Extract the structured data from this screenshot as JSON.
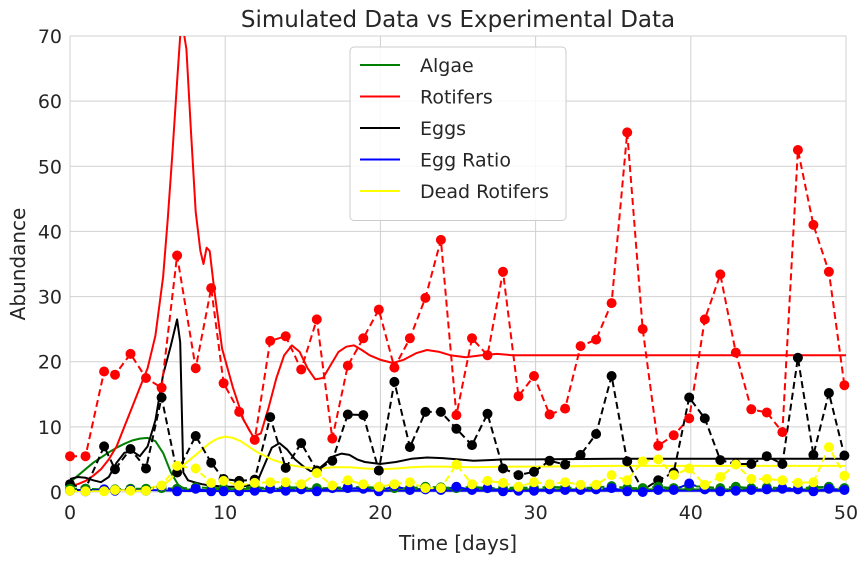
{
  "chart_data": {
    "type": "line",
    "title": "Simulated Data vs Experimental Data",
    "xlabel": "Time [days]",
    "ylabel": "Abundance",
    "xlim": [
      0,
      50
    ],
    "ylim": [
      0,
      70
    ],
    "xticks": [
      0,
      10,
      20,
      30,
      40,
      50
    ],
    "yticks": [
      0,
      10,
      20,
      30,
      40,
      50,
      60,
      70
    ],
    "grid": true,
    "legend_position": "upper center",
    "simulated_series": [
      {
        "name": "Algae",
        "color": "#008000",
        "points": [
          [
            0,
            1.5
          ],
          [
            0.5,
            2.5
          ],
          [
            1,
            3.5
          ],
          [
            1.5,
            4.5
          ],
          [
            2,
            5.3
          ],
          [
            2.5,
            6.1
          ],
          [
            3,
            6.8
          ],
          [
            3.5,
            7.4
          ],
          [
            4,
            7.9
          ],
          [
            4.5,
            8.2
          ],
          [
            5,
            8.3
          ],
          [
            5.5,
            7.8
          ],
          [
            6,
            6
          ],
          [
            6.5,
            3
          ],
          [
            7,
            1
          ],
          [
            7.5,
            0.4
          ],
          [
            8,
            0.3
          ],
          [
            9,
            0.3
          ],
          [
            10,
            0.4
          ],
          [
            12,
            0.5
          ],
          [
            15,
            0.5
          ],
          [
            20,
            0.5
          ],
          [
            30,
            0.4
          ],
          [
            40,
            0.4
          ],
          [
            50,
            0.4
          ]
        ]
      },
      {
        "name": "Rotifers",
        "color": "#ff0000",
        "points": [
          [
            0,
            1
          ],
          [
            0.5,
            1.2
          ],
          [
            1,
            1.7
          ],
          [
            1.5,
            2.5
          ],
          [
            2,
            3.5
          ],
          [
            2.5,
            5
          ],
          [
            3,
            7
          ],
          [
            3.5,
            10
          ],
          [
            4,
            13
          ],
          [
            4.5,
            16
          ],
          [
            5,
            19
          ],
          [
            5.5,
            24
          ],
          [
            6,
            33
          ],
          [
            6.3,
            42
          ],
          [
            6.6,
            52
          ],
          [
            6.9,
            63
          ],
          [
            7.1,
            70
          ],
          [
            7.3,
            71
          ],
          [
            7.5,
            68
          ],
          [
            7.8,
            55
          ],
          [
            8.1,
            43
          ],
          [
            8.4,
            37
          ],
          [
            8.6,
            35
          ],
          [
            8.8,
            37.5
          ],
          [
            9,
            37
          ],
          [
            9.3,
            31
          ],
          [
            9.8,
            22
          ],
          [
            10.5,
            16
          ],
          [
            11.2,
            11
          ],
          [
            11.8,
            8.5
          ],
          [
            12.3,
            9
          ],
          [
            12.8,
            13
          ],
          [
            13.3,
            17.5
          ],
          [
            13.8,
            21
          ],
          [
            14.3,
            22.5
          ],
          [
            14.8,
            21.5
          ],
          [
            15.3,
            19
          ],
          [
            15.8,
            17.3
          ],
          [
            16.3,
            17.5
          ],
          [
            16.8,
            19.5
          ],
          [
            17.3,
            21.5
          ],
          [
            17.8,
            22.3
          ],
          [
            18.3,
            22.5
          ],
          [
            18.8,
            21.8
          ],
          [
            19.3,
            21
          ],
          [
            20,
            20.3
          ],
          [
            20.8,
            19.8
          ],
          [
            21.5,
            20.3
          ],
          [
            22.3,
            21.3
          ],
          [
            23,
            21.8
          ],
          [
            23.8,
            21.5
          ],
          [
            24.5,
            21
          ],
          [
            25.5,
            20.7
          ],
          [
            26.5,
            21
          ],
          [
            27.5,
            21.2
          ],
          [
            28.5,
            21
          ],
          [
            30,
            21
          ],
          [
            35,
            21
          ],
          [
            40,
            21
          ],
          [
            50,
            21
          ]
        ]
      },
      {
        "name": "Eggs",
        "color": "#000000",
        "points": [
          [
            0,
            2
          ],
          [
            0.5,
            2.3
          ],
          [
            1,
            2.2
          ],
          [
            1.5,
            1.8
          ],
          [
            2,
            1.5
          ],
          [
            2.5,
            2.3
          ],
          [
            3,
            4.5
          ],
          [
            3.5,
            6
          ],
          [
            4,
            6.3
          ],
          [
            4.5,
            5.5
          ],
          [
            5,
            7
          ],
          [
            5.5,
            11
          ],
          [
            6,
            18
          ],
          [
            6.5,
            22.5
          ],
          [
            6.9,
            26.5
          ],
          [
            7.1,
            23
          ],
          [
            7.3,
            3
          ],
          [
            7.6,
            1.8
          ],
          [
            8,
            1.5
          ],
          [
            8.5,
            1.2
          ],
          [
            9,
            1
          ],
          [
            10,
            0.8
          ],
          [
            11,
            0.8
          ],
          [
            12,
            1.2
          ],
          [
            12.5,
            4
          ],
          [
            13,
            6.8
          ],
          [
            13.5,
            7.5
          ],
          [
            14,
            6.5
          ],
          [
            14.5,
            5
          ],
          [
            15,
            4
          ],
          [
            15.5,
            3.2
          ],
          [
            16,
            3.5
          ],
          [
            16.5,
            4.5
          ],
          [
            17,
            5.5
          ],
          [
            17.5,
            5.9
          ],
          [
            18,
            5.7
          ],
          [
            18.5,
            5
          ],
          [
            19,
            4.6
          ],
          [
            20,
            4.3
          ],
          [
            21,
            4.6
          ],
          [
            22,
            5.1
          ],
          [
            23,
            5.3
          ],
          [
            24,
            5.2
          ],
          [
            25,
            5
          ],
          [
            26,
            4.8
          ],
          [
            27,
            4.9
          ],
          [
            28,
            5
          ],
          [
            30,
            5
          ],
          [
            35,
            5.1
          ],
          [
            40,
            5.1
          ],
          [
            45,
            5.1
          ],
          [
            50,
            5.1
          ]
        ]
      },
      {
        "name": "Egg Ratio",
        "color": "#0000ff",
        "points": [
          [
            0,
            0.3
          ],
          [
            5,
            0.3
          ],
          [
            7,
            0.2
          ],
          [
            8,
            0.1
          ],
          [
            10,
            0.1
          ],
          [
            15,
            0.2
          ],
          [
            20,
            0.2
          ],
          [
            30,
            0.2
          ],
          [
            40,
            0.2
          ],
          [
            50,
            0.2
          ]
        ]
      },
      {
        "name": "Dead Rotifers",
        "color": "#ffff00",
        "points": [
          [
            0,
            0
          ],
          [
            1,
            0
          ],
          [
            2,
            0.1
          ],
          [
            3,
            0.2
          ],
          [
            4,
            0.4
          ],
          [
            5,
            0.6
          ],
          [
            6,
            1
          ],
          [
            6.5,
            2
          ],
          [
            7,
            3.5
          ],
          [
            7.5,
            4.5
          ],
          [
            8,
            5.5
          ],
          [
            8.5,
            6.5
          ],
          [
            9,
            7.5
          ],
          [
            9.5,
            8.2
          ],
          [
            10,
            8.5
          ],
          [
            10.5,
            8.3
          ],
          [
            11,
            7.8
          ],
          [
            11.5,
            7
          ],
          [
            12,
            6.2
          ],
          [
            13,
            5
          ],
          [
            14,
            4.2
          ],
          [
            15,
            3.8
          ],
          [
            16,
            3.6
          ],
          [
            17,
            3.8
          ],
          [
            18,
            3.8
          ],
          [
            19,
            3.6
          ],
          [
            20,
            3.5
          ],
          [
            21,
            3.6
          ],
          [
            22,
            3.8
          ],
          [
            23,
            3.9
          ],
          [
            24,
            3.9
          ],
          [
            26,
            3.8
          ],
          [
            28,
            3.9
          ],
          [
            30,
            3.9
          ],
          [
            35,
            4
          ],
          [
            40,
            4
          ],
          [
            45,
            4
          ],
          [
            50,
            4
          ]
        ]
      }
    ],
    "experimental_series": [
      {
        "color": "#ff0000",
        "x": [
          0,
          1,
          2.2,
          2.9,
          3.9,
          4.9,
          5.9,
          6.9,
          8.1,
          9.1,
          9.9,
          10.9,
          11.9,
          12.9,
          13.9,
          14.9,
          15.9,
          16.9,
          17.9,
          18.9,
          19.9,
          20.9,
          21.9,
          22.9,
          23.9,
          24.9,
          25.9,
          26.9,
          27.9,
          28.9,
          29.9,
          30.9,
          31.9,
          32.9,
          33.9,
          34.9,
          35.9,
          36.9,
          37.9,
          38.9,
          39.9,
          40.9,
          41.9,
          42.9,
          43.9,
          44.9,
          45.9,
          46.9,
          47.9,
          48.9,
          49.9
        ],
        "y": [
          5.5,
          5.5,
          18.5,
          18,
          21.2,
          17.5,
          16,
          36.3,
          19,
          31.3,
          16.7,
          12.3,
          8,
          23.2,
          23.9,
          18.8,
          26.5,
          8.2,
          19.4,
          23.6,
          28,
          19.1,
          23.6,
          29.8,
          38.7,
          11.8,
          23.6,
          21,
          33.8,
          14.7,
          17.8,
          11.9,
          12.8,
          22.4,
          23.4,
          29,
          55.2,
          25,
          7.1,
          8.7,
          11.3,
          26.5,
          33.4,
          21.4,
          12.7,
          12.2,
          9.2,
          52.5,
          41,
          33.8,
          16.4
        ]
      },
      {
        "color": "#000000",
        "x": [
          0,
          1,
          2.2,
          2.9,
          3.9,
          4.9,
          5.9,
          6.9,
          8.1,
          9.1,
          9.9,
          10.9,
          11.9,
          12.9,
          13.9,
          14.9,
          15.9,
          16.9,
          17.9,
          18.9,
          19.9,
          20.9,
          21.9,
          22.9,
          23.9,
          24.9,
          25.9,
          26.9,
          27.9,
          28.9,
          29.9,
          30.9,
          31.9,
          32.9,
          33.9,
          34.9,
          35.9,
          36.9,
          37.9,
          38.9,
          39.9,
          40.9,
          41.9,
          42.9,
          43.9,
          44.9,
          45.9,
          46.9,
          47.9,
          48.9,
          49.9
        ],
        "y": [
          1.2,
          0.5,
          7,
          3.5,
          6.6,
          3.6,
          14.5,
          3,
          8.6,
          4.5,
          2,
          1.7,
          1.9,
          11.5,
          3.7,
          7.5,
          3.3,
          4.8,
          11.9,
          11.8,
          3.3,
          16.9,
          6.9,
          12.3,
          12.3,
          9.7,
          7.2,
          12,
          3.6,
          2.6,
          3.1,
          4.8,
          4.2,
          5.7,
          8.9,
          17.8,
          4.7,
          0.3,
          1.8,
          3,
          14.5,
          11.3,
          4.9,
          4.3,
          4.3,
          5.5,
          4.3,
          20.6,
          5.7,
          15.2,
          5.6
        ]
      },
      {
        "color": "#008000",
        "x": [
          0,
          1,
          2.2,
          2.9,
          3.9,
          4.9,
          5.9,
          6.9,
          8.1,
          9.1,
          9.9,
          10.9,
          11.9,
          12.9,
          13.9,
          14.9,
          15.9,
          16.9,
          17.9,
          18.9,
          19.9,
          20.9,
          21.9,
          22.9,
          23.9,
          24.9,
          25.9,
          26.9,
          27.9,
          28.9,
          29.9,
          30.9,
          31.9,
          32.9,
          33.9,
          34.9,
          35.9,
          36.9,
          37.9,
          38.9,
          39.9,
          40.9,
          41.9,
          42.9,
          43.9,
          44.9,
          45.9,
          46.9,
          47.9,
          48.9,
          49.9
        ],
        "y": [
          0.5,
          0.5,
          0.4,
          0.4,
          0.5,
          0.5,
          0.6,
          0.5,
          0.7,
          0.6,
          0.6,
          0.6,
          0.7,
          0.6,
          0.7,
          0.7,
          0.6,
          0.6,
          0.8,
          0.7,
          0.7,
          0.6,
          0.6,
          0.8,
          0.7,
          0.6,
          0.8,
          0.6,
          0.6,
          0.7,
          0.6,
          0.8,
          0.7,
          0.6,
          0.7,
          0.9,
          0.6,
          0.6,
          0.8,
          0.6,
          0.9,
          0.8,
          0.6,
          0.8,
          0.6,
          0.7,
          0.6,
          0.6,
          0.7,
          0.8,
          0.6
        ]
      },
      {
        "color": "#0000ff",
        "x": [
          0,
          1,
          2.2,
          2.9,
          3.9,
          4.9,
          5.9,
          6.9,
          8.1,
          9.1,
          9.9,
          10.9,
          11.9,
          12.9,
          13.9,
          14.9,
          15.9,
          16.9,
          17.9,
          18.9,
          19.9,
          20.9,
          21.9,
          22.9,
          23.9,
          24.9,
          25.9,
          26.9,
          27.9,
          28.9,
          29.9,
          30.9,
          31.9,
          32.9,
          33.9,
          34.9,
          35.9,
          36.9,
          37.9,
          38.9,
          39.9,
          40.9,
          41.9,
          42.9,
          43.9,
          44.9,
          45.9,
          46.9,
          47.9,
          48.9,
          49.9
        ],
        "y": [
          0.2,
          0.1,
          0.4,
          0.2,
          0.3,
          0.2,
          0.9,
          0.1,
          0.5,
          0.1,
          0.1,
          0.1,
          0.2,
          0.5,
          0.2,
          0.4,
          0.1,
          0.6,
          0.6,
          0.5,
          0.1,
          0.9,
          0.3,
          0.4,
          0.3,
          0.8,
          0.3,
          0.6,
          0.1,
          0.2,
          0.2,
          0.4,
          0.3,
          0.3,
          0.4,
          0.6,
          0.1,
          0.0,
          0.3,
          0.3,
          1.3,
          0.4,
          0.1,
          0.2,
          0.3,
          0.4,
          0.5,
          0.4,
          0.1,
          0.5,
          0.3
        ]
      },
      {
        "color": "#ffff00",
        "x": [
          0,
          1,
          2.2,
          2.9,
          3.9,
          4.9,
          5.9,
          6.9,
          8.1,
          9.1,
          9.9,
          10.9,
          11.9,
          12.9,
          13.9,
          14.9,
          15.9,
          16.9,
          17.9,
          18.9,
          19.9,
          20.9,
          21.9,
          22.9,
          23.9,
          24.9,
          25.9,
          26.9,
          27.9,
          28.9,
          29.9,
          30.9,
          31.9,
          32.9,
          33.9,
          34.9,
          35.9,
          36.9,
          37.9,
          38.9,
          39.9,
          40.9,
          41.9,
          42.9,
          43.9,
          44.9,
          45.9,
          46.9,
          47.9,
          48.9,
          49.9
        ],
        "y": [
          0.2,
          0.1,
          0.1,
          0.3,
          0.2,
          0.2,
          1,
          4,
          3.6,
          1.4,
          1.7,
          1,
          1.4,
          1.5,
          1.5,
          1.2,
          2.9,
          1,
          1.8,
          1.2,
          0.8,
          1.2,
          1.5,
          0.6,
          0.6,
          4.2,
          1.2,
          1.7,
          1.4,
          0.8,
          1.5,
          1.2,
          1.5,
          1.1,
          1.1,
          2.6,
          1.8,
          4.7,
          5,
          2.6,
          3.6,
          1.1,
          2.3,
          4.2,
          2,
          2,
          1.8,
          1.4,
          1.5,
          6.9,
          2.5
        ]
      }
    ]
  }
}
